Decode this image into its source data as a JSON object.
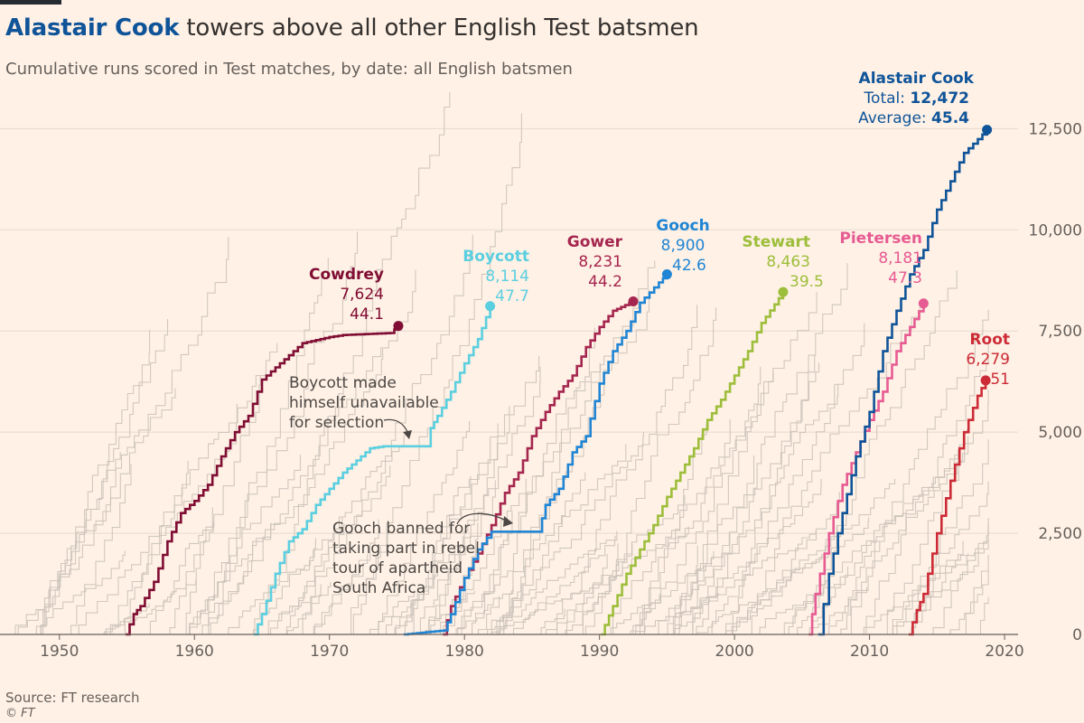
{
  "header": {
    "title_highlight": "Alastair Cook",
    "title_rest": " towers above all other English Test batsmen",
    "subtitle": "Cumulative runs scored in Test matches, by date: all English batsmen"
  },
  "footer": {
    "source": "Source: FT research",
    "copyright": "© FT"
  },
  "colors": {
    "background": "#fff1e5",
    "grey_lines": "#c9c1b9",
    "cook": "#0f5499",
    "cowdrey": "#800d33",
    "boycott": "#5bcfe0",
    "gower": "#a5264f",
    "gooch": "#1f85d4",
    "stewart": "#9dbe3b",
    "pietersen": "#e75b93",
    "root": "#cc2b36"
  },
  "annotations": {
    "boycott": [
      "Boycott made",
      "himself unavailable",
      "for selection"
    ],
    "gooch": [
      "Gooch banned for",
      "taking part in rebel",
      "tour of apartheid",
      "South Africa"
    ]
  },
  "chart_data": {
    "type": "line",
    "title": "Alastair Cook towers above all other English Test batsmen",
    "subtitle": "Cumulative runs scored in Test matches, by date: all English batsmen",
    "xlim": [
      1946,
      2021
    ],
    "ylim": [
      0,
      13000
    ],
    "x_ticks": [
      "1950",
      "1960",
      "1970",
      "1980",
      "1990",
      "2000",
      "2010",
      "2020"
    ],
    "y_ticks": [
      "0",
      "2,500",
      "5,000",
      "7,500",
      "10,000",
      "12,500"
    ],
    "y_axis_side": "right",
    "grid": "horizontal",
    "highlighted": [
      {
        "name": "Alastair Cook",
        "total_label": "Total:",
        "average_label": "Average:",
        "total": "12,472",
        "average": "45.4",
        "total_value": 12472,
        "points": [
          [
            2006.2,
            0
          ],
          [
            2007,
            1500
          ],
          [
            2008,
            3000
          ],
          [
            2009,
            4400
          ],
          [
            2010,
            5500
          ],
          [
            2011,
            7000
          ],
          [
            2012,
            8000
          ],
          [
            2013,
            8900
          ],
          [
            2014,
            9500
          ],
          [
            2015,
            10500
          ],
          [
            2016,
            11200
          ],
          [
            2017,
            11900
          ],
          [
            2018.7,
            12472
          ]
        ]
      },
      {
        "name": "Cowdrey",
        "total": "7,624",
        "average": "44.1",
        "total_value": 7624,
        "points": [
          [
            1954.9,
            0
          ],
          [
            1955.5,
            500
          ],
          [
            1956,
            700
          ],
          [
            1957,
            1300
          ],
          [
            1958,
            2300
          ],
          [
            1959,
            3000
          ],
          [
            1960,
            3300
          ],
          [
            1961,
            3700
          ],
          [
            1962,
            4400
          ],
          [
            1963,
            5000
          ],
          [
            1964,
            5400
          ],
          [
            1965,
            6300
          ],
          [
            1966,
            6600
          ],
          [
            1967,
            6900
          ],
          [
            1968,
            7200
          ],
          [
            1970,
            7350
          ],
          [
            1971,
            7400
          ],
          [
            1974.5,
            7450
          ],
          [
            1975.1,
            7624
          ]
        ]
      },
      {
        "name": "Boycott",
        "total": "8,114",
        "average": "47.7",
        "total_value": 8114,
        "points": [
          [
            1964.4,
            0
          ],
          [
            1965,
            500
          ],
          [
            1966,
            1500
          ],
          [
            1967,
            2300
          ],
          [
            1968,
            2600
          ],
          [
            1969,
            3200
          ],
          [
            1970,
            3600
          ],
          [
            1971,
            4000
          ],
          [
            1972,
            4300
          ],
          [
            1973,
            4600
          ],
          [
            1974,
            4650
          ],
          [
            1977.2,
            4650
          ],
          [
            1977.5,
            5100
          ],
          [
            1978,
            5400
          ],
          [
            1979,
            6000
          ],
          [
            1980,
            6700
          ],
          [
            1981,
            7300
          ],
          [
            1981.9,
            8114
          ]
        ]
      },
      {
        "name": "Gower",
        "total": "8,231",
        "average": "44.2",
        "total_value": 8231,
        "points": [
          [
            1978.4,
            0
          ],
          [
            1979,
            700
          ],
          [
            1980,
            1400
          ],
          [
            1981,
            2000
          ],
          [
            1982,
            2700
          ],
          [
            1983,
            3500
          ],
          [
            1984,
            4000
          ],
          [
            1985,
            4900
          ],
          [
            1986,
            5500
          ],
          [
            1987,
            6000
          ],
          [
            1988,
            6400
          ],
          [
            1989,
            7100
          ],
          [
            1990,
            7600
          ],
          [
            1991,
            8000
          ],
          [
            1992.5,
            8231
          ]
        ]
      },
      {
        "name": "Gooch",
        "total": "8,900",
        "average": "42.6",
        "total_value": 8900,
        "points": [
          [
            1975.5,
            0
          ],
          [
            1978.5,
            100
          ],
          [
            1979,
            500
          ],
          [
            1980,
            1400
          ],
          [
            1981,
            2100
          ],
          [
            1982,
            2540
          ],
          [
            1985.5,
            2540
          ],
          [
            1986,
            3200
          ],
          [
            1987,
            3600
          ],
          [
            1988,
            4500
          ],
          [
            1989,
            4900
          ],
          [
            1990,
            6200
          ],
          [
            1991,
            7000
          ],
          [
            1992,
            7500
          ],
          [
            1993,
            8200
          ],
          [
            1994.4,
            8700
          ],
          [
            1995,
            8900
          ]
        ]
      },
      {
        "name": "Stewart",
        "total": "8,463",
        "average": "39.5",
        "total_value": 8463,
        "points": [
          [
            1990.1,
            0
          ],
          [
            1991,
            700
          ],
          [
            1992,
            1500
          ],
          [
            1993,
            2100
          ],
          [
            1994,
            2700
          ],
          [
            1995,
            3400
          ],
          [
            1996,
            4000
          ],
          [
            1997,
            4600
          ],
          [
            1998,
            5300
          ],
          [
            1999,
            5800
          ],
          [
            2000,
            6400
          ],
          [
            2001,
            7000
          ],
          [
            2002,
            7700
          ],
          [
            2003.6,
            8463
          ]
        ]
      },
      {
        "name": "Pietersen",
        "total": "8,181",
        "average": "47.3",
        "total_value": 8181,
        "points": [
          [
            2005.5,
            0
          ],
          [
            2006,
            1000
          ],
          [
            2007,
            2500
          ],
          [
            2008,
            3700
          ],
          [
            2009,
            4500
          ],
          [
            2010,
            5300
          ],
          [
            2011,
            6000
          ],
          [
            2012,
            7000
          ],
          [
            2013,
            7600
          ],
          [
            2014,
            8181
          ]
        ]
      },
      {
        "name": "Root",
        "total": "6,279",
        "average": "51",
        "total_value": 6279,
        "points": [
          [
            2012.9,
            0
          ],
          [
            2013.5,
            600
          ],
          [
            2014,
            1000
          ],
          [
            2015,
            2500
          ],
          [
            2016,
            3800
          ],
          [
            2017,
            5000
          ],
          [
            2018,
            5900
          ],
          [
            2018.6,
            6279
          ]
        ]
      }
    ]
  }
}
